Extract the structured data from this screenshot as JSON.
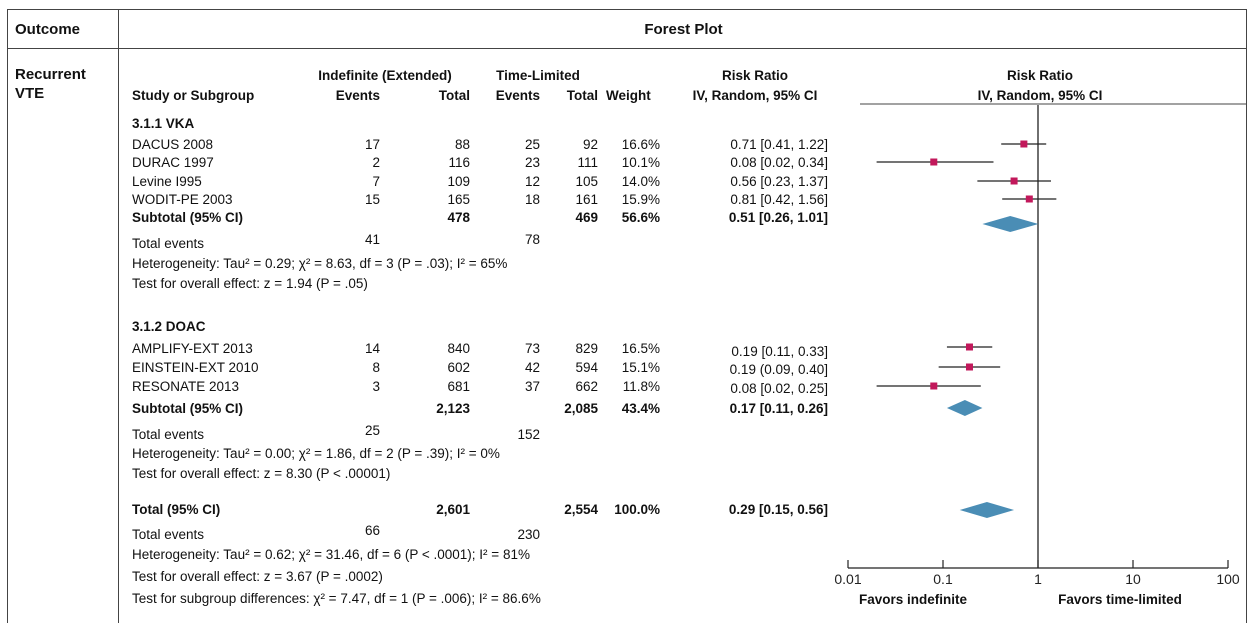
{
  "table": {
    "col_outcome": "Outcome",
    "col_forest": "Forest Plot",
    "outcome_label": "Recurrent VTE",
    "headers": {
      "study": "Study or Subgroup",
      "indef_group": "Indefinite (Extended)",
      "indef_events": "Events",
      "indef_total": "Total",
      "tl_group": "Time-Limited",
      "tl_events": "Events",
      "tl_total": "Total",
      "weight": "Weight",
      "rr_title": "Risk Ratio",
      "rr_method": "IV, Random, 95% CI",
      "plot_title": "Risk Ratio",
      "plot_method": "IV, Random, 95% CI"
    },
    "subgroups": [
      {
        "name": "3.1.1 VKA",
        "studies": [
          {
            "name": "DACUS 2008",
            "e1": "17",
            "t1": "88",
            "e2": "25",
            "t2": "92",
            "w": "16.6%",
            "ci": "0.71 [0.41, 1.22]"
          },
          {
            "name": "DURAC 1997",
            "e1": "2",
            "t1": "116",
            "e2": "23",
            "t2": "111",
            "w": "10.1%",
            "ci": "0.08 [0.02, 0.34]"
          },
          {
            "name": "Levine I995",
            "e1": "7",
            "t1": "109",
            "e2": "12",
            "t2": "105",
            "w": "14.0%",
            "ci": "0.56 [0.23, 1.37]"
          },
          {
            "name": "WODIT-PE 2003",
            "e1": "15",
            "t1": "165",
            "e2": "18",
            "t2": "161",
            "w": "15.9%",
            "ci": "0.81 [0.42, 1.56]"
          }
        ],
        "subtotal": {
          "label": "Subtotal (95% CI)",
          "t1": "478",
          "t2": "469",
          "w": "56.6%",
          "ci": "0.51 [0.26, 1.01]"
        },
        "total_events": {
          "label": "Total events",
          "e1": "41",
          "e2": "78"
        },
        "heterogeneity": "Heterogeneity: Tau² = 0.29; χ² = 8.63, df = 3 (P = .03); I² = 65%",
        "overall": "Test for overall effect: z = 1.94 (P = .05)"
      },
      {
        "name": "3.1.2 DOAC",
        "studies": [
          {
            "name": "AMPLIFY-EXT 2013",
            "e1": "14",
            "t1": "840",
            "e2": "73",
            "t2": "829",
            "w": "16.5%",
            "ci": "0.19 [0.11, 0.33]"
          },
          {
            "name": "EINSTEIN-EXT 2010",
            "e1": "8",
            "t1": "602",
            "e2": "42",
            "t2": "594",
            "w": "15.1%",
            "ci": "0.19 (0.09, 0.40]"
          },
          {
            "name": "RESONATE 2013",
            "e1": "3",
            "t1": "681",
            "e2": "37",
            "t2": "662",
            "w": "11.8%",
            "ci": "0.08 [0.02, 0.25]"
          }
        ],
        "subtotal": {
          "label": "Subtotal (95% CI)",
          "t1": "2,123",
          "t2": "2,085",
          "w": "43.4%",
          "ci": "0.17 [0.11, 0.26]"
        },
        "total_events": {
          "label": "Total events",
          "e1": "25",
          "e2": "152"
        },
        "heterogeneity": "Heterogeneity: Tau² = 0.00; χ² = 1.86, df = 2 (P = .39); I² = 0%",
        "overall": "Test for overall effect: z = 8.30 (P < .00001)"
      }
    ],
    "total": {
      "label": "Total (95% CI)",
      "t1": "2,601",
      "t2": "2,554",
      "w": "100.0%",
      "ci": "0.29 [0.15, 0.56]"
    },
    "total_events": {
      "label": "Total events",
      "e1": "66",
      "e2": "230"
    },
    "heterogeneity": "Heterogeneity: Tau² = 0.62; χ² = 31.46, df = 6 (P < .0001); I² = 81%",
    "overall": "Test for overall effect: z = 3.67 (P = .0002)",
    "subgroup_diff": "Test for subgroup differences: χ² = 7.47, df = 1 (P = .006); I² = 86.6%"
  },
  "chart_data": {
    "type": "scatter",
    "subtype": "forest",
    "scale": "log",
    "xlim": [
      0.01,
      100
    ],
    "ticks": [
      "0.01",
      "0.1",
      "1",
      "10",
      "100"
    ],
    "tick_values": [
      0.01,
      0.1,
      1,
      10,
      100
    ],
    "reference_line": 1,
    "favors_left": "Favors indefinite",
    "favors_right": "Favors time-limited",
    "studies": [
      {
        "study": "DACUS 2008",
        "rr": 0.71,
        "lo": 0.41,
        "hi": 1.22
      },
      {
        "study": "DURAC 1997",
        "rr": 0.08,
        "lo": 0.02,
        "hi": 0.34
      },
      {
        "study": "Levine I995",
        "rr": 0.56,
        "lo": 0.23,
        "hi": 1.37
      },
      {
        "study": "WODIT-PE 2003",
        "rr": 0.81,
        "lo": 0.42,
        "hi": 1.56
      },
      {
        "study": "AMPLIFY-EXT 2013",
        "rr": 0.19,
        "lo": 0.11,
        "hi": 0.33
      },
      {
        "study": "EINSTEIN-EXT 2010",
        "rr": 0.19,
        "lo": 0.09,
        "hi": 0.4
      },
      {
        "study": "RESONATE 2013",
        "rr": 0.08,
        "lo": 0.02,
        "hi": 0.25
      }
    ],
    "diamonds": [
      {
        "label": "Subtotal VKA",
        "rr": 0.51,
        "lo": 0.26,
        "hi": 1.01
      },
      {
        "label": "Subtotal DOAC",
        "rr": 0.17,
        "lo": 0.11,
        "hi": 0.26
      },
      {
        "label": "Total",
        "rr": 0.29,
        "lo": 0.15,
        "hi": 0.56
      }
    ],
    "colors": {
      "marker": "#c2185b",
      "diamond": "#4a8db5",
      "line": "#222222"
    }
  }
}
